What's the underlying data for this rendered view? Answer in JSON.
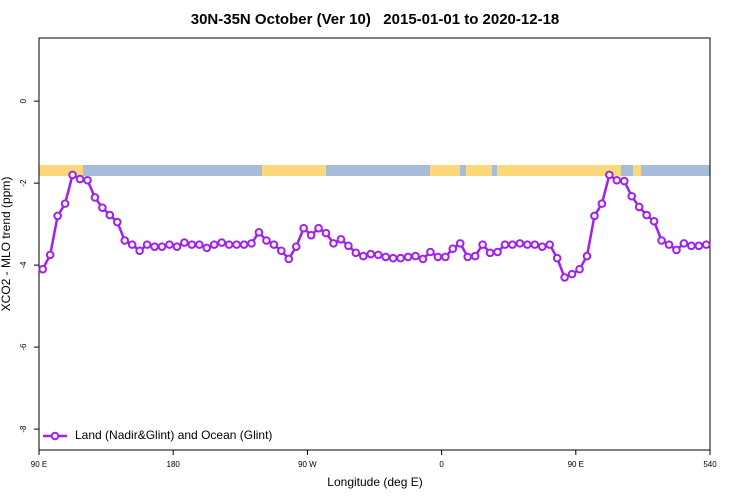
{
  "chart_data": {
    "type": "line",
    "title": "30N-35N October (Ver 10)   2015-01-01 to 2020-12-18",
    "x_label": "Longitude (deg E)",
    "y_label": "XCO2 - MLO trend (ppm)",
    "xlim": [
      90,
      540
    ],
    "ylim": [
      -8.51,
      1.54
    ],
    "xticks": [
      {
        "value": 90,
        "label": "90 E"
      },
      180,
      {
        "value": 270,
        "label": "90 W"
      },
      {
        "value": 360,
        "label": "0"
      },
      {
        "value": 450,
        "label": "90 E"
      },
      540
    ],
    "yticks": [
      0,
      -2,
      -4,
      -6,
      -8
    ],
    "legend": "bottom-left",
    "x": [
      92.5,
      97.5,
      102.5,
      107.5,
      112.5,
      117.5,
      122.5,
      127.5,
      132.5,
      137.5,
      142.5,
      147.5,
      152.5,
      157.5,
      162.5,
      167.5,
      172.5,
      177.5,
      182.5,
      187.5,
      192.5,
      197.5,
      202.5,
      207.5,
      212.5,
      217.5,
      222.5,
      227.5,
      232.5,
      237.5,
      242.5,
      247.5,
      252.5,
      257.5,
      262.5,
      267.5,
      272.5,
      277.5,
      282.5,
      287.5,
      292.5,
      297.5,
      302.5,
      307.5,
      312.5,
      317.5,
      322.5,
      327.5,
      332.5,
      337.5,
      342.5,
      347.5,
      352.5,
      357.5,
      362.5,
      367.5,
      372.5,
      377.5,
      382.5,
      387.5,
      392.5,
      397.5,
      402.5,
      407.5,
      412.5,
      417.5,
      422.5,
      427.5,
      432.5,
      437.5,
      442.5,
      447.5,
      452.5,
      457.5,
      462.5,
      467.5,
      472.5,
      477.5,
      482.5,
      487.5,
      492.5,
      497.5,
      502.5,
      507.5,
      512.5,
      517.5,
      522.5,
      527.5,
      532.5,
      537.5
    ],
    "series": [
      {
        "name": "Land (Nadir&Glint) and Ocean (Glint)",
        "color": "#a020f0",
        "values": [
          -4.1,
          -3.75,
          -2.8,
          -2.5,
          -1.8,
          -1.9,
          -1.93,
          -2.35,
          -2.6,
          -2.78,
          -2.95,
          -3.4,
          -3.5,
          -3.65,
          -3.5,
          -3.55,
          -3.55,
          -3.5,
          -3.55,
          -3.45,
          -3.5,
          -3.5,
          -3.58,
          -3.5,
          -3.45,
          -3.5,
          -3.5,
          -3.5,
          -3.47,
          -3.2,
          -3.4,
          -3.5,
          -3.65,
          -3.85,
          -3.55,
          -3.1,
          -3.27,
          -3.1,
          -3.22,
          -3.47,
          -3.37,
          -3.53,
          -3.7,
          -3.78,
          -3.73,
          -3.75,
          -3.8,
          -3.83,
          -3.83,
          -3.8,
          -3.78,
          -3.85,
          -3.68,
          -3.8,
          -3.8,
          -3.6,
          -3.47,
          -3.8,
          -3.78,
          -3.5,
          -3.7,
          -3.68,
          -3.5,
          -3.5,
          -3.47,
          -3.5,
          -3.5,
          -3.55,
          -3.5,
          -3.83,
          -4.3,
          -4.22,
          -4.1,
          -3.78,
          -2.8,
          -2.5,
          -1.8,
          -1.93,
          -1.95,
          -2.32,
          -2.58,
          -2.78,
          -2.93,
          -3.4,
          -3.5,
          -3.63,
          -3.47,
          -3.53,
          -3.53,
          -3.5
        ]
      }
    ]
  }
}
